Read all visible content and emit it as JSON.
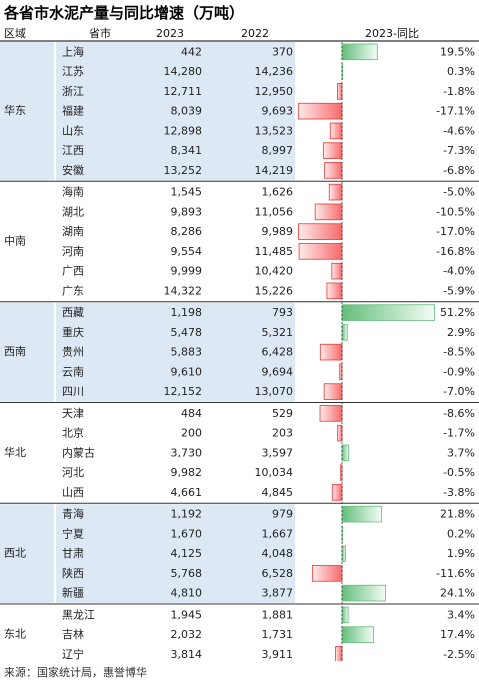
{
  "title": "各省市水泥产量与同比增速（万吨）",
  "source": "来源：国家统计局，惠誉博华",
  "chart_data": {
    "type": "table",
    "columns": [
      "区域",
      "省市",
      "2023",
      "2022",
      "2023-同比"
    ],
    "regions": [
      {
        "name": "华东",
        "shaded": true,
        "rows": [
          {
            "province": "上海",
            "v2023": "442",
            "v2022": "370",
            "yoy": 19.5,
            "yoy_label": "19.5%"
          },
          {
            "province": "江苏",
            "v2023": "14,280",
            "v2022": "14,236",
            "yoy": 0.3,
            "yoy_label": "0.3%"
          },
          {
            "province": "浙江",
            "v2023": "12,711",
            "v2022": "12,950",
            "yoy": -1.8,
            "yoy_label": "-1.8%"
          },
          {
            "province": "福建",
            "v2023": "8,039",
            "v2022": "9,693",
            "yoy": -17.1,
            "yoy_label": "-17.1%"
          },
          {
            "province": "山东",
            "v2023": "12,898",
            "v2022": "13,523",
            "yoy": -4.6,
            "yoy_label": "-4.6%"
          },
          {
            "province": "江西",
            "v2023": "8,341",
            "v2022": "8,997",
            "yoy": -7.3,
            "yoy_label": "-7.3%"
          },
          {
            "province": "安徽",
            "v2023": "13,252",
            "v2022": "14,219",
            "yoy": -6.8,
            "yoy_label": "-6.8%"
          }
        ]
      },
      {
        "name": "中南",
        "shaded": false,
        "rows": [
          {
            "province": "海南",
            "v2023": "1,545",
            "v2022": "1,626",
            "yoy": -5.0,
            "yoy_label": "-5.0%"
          },
          {
            "province": "湖北",
            "v2023": "9,893",
            "v2022": "11,056",
            "yoy": -10.5,
            "yoy_label": "-10.5%"
          },
          {
            "province": "湖南",
            "v2023": "8,286",
            "v2022": "9,989",
            "yoy": -17.0,
            "yoy_label": "-17.0%"
          },
          {
            "province": "河南",
            "v2023": "9,554",
            "v2022": "11,485",
            "yoy": -16.8,
            "yoy_label": "-16.8%"
          },
          {
            "province": "广西",
            "v2023": "9,999",
            "v2022": "10,420",
            "yoy": -4.0,
            "yoy_label": "-4.0%"
          },
          {
            "province": "广东",
            "v2023": "14,322",
            "v2022": "15,226",
            "yoy": -5.9,
            "yoy_label": "-5.9%"
          }
        ]
      },
      {
        "name": "西南",
        "shaded": true,
        "rows": [
          {
            "province": "西藏",
            "v2023": "1,198",
            "v2022": "793",
            "yoy": 51.2,
            "yoy_label": "51.2%"
          },
          {
            "province": "重庆",
            "v2023": "5,478",
            "v2022": "5,321",
            "yoy": 2.9,
            "yoy_label": "2.9%"
          },
          {
            "province": "贵州",
            "v2023": "5,883",
            "v2022": "6,428",
            "yoy": -8.5,
            "yoy_label": "-8.5%"
          },
          {
            "province": "云南",
            "v2023": "9,610",
            "v2022": "9,694",
            "yoy": -0.9,
            "yoy_label": "-0.9%"
          },
          {
            "province": "四川",
            "v2023": "12,152",
            "v2022": "13,070",
            "yoy": -7.0,
            "yoy_label": "-7.0%"
          }
        ]
      },
      {
        "name": "华北",
        "shaded": false,
        "rows": [
          {
            "province": "天津",
            "v2023": "484",
            "v2022": "529",
            "yoy": -8.6,
            "yoy_label": "-8.6%"
          },
          {
            "province": "北京",
            "v2023": "200",
            "v2022": "203",
            "yoy": -1.7,
            "yoy_label": "-1.7%"
          },
          {
            "province": "内蒙古",
            "v2023": "3,730",
            "v2022": "3,597",
            "yoy": 3.7,
            "yoy_label": "3.7%"
          },
          {
            "province": "河北",
            "v2023": "9,982",
            "v2022": "10,034",
            "yoy": -0.5,
            "yoy_label": "-0.5%"
          },
          {
            "province": "山西",
            "v2023": "4,661",
            "v2022": "4,845",
            "yoy": -3.8,
            "yoy_label": "-3.8%"
          }
        ]
      },
      {
        "name": "西北",
        "shaded": true,
        "rows": [
          {
            "province": "青海",
            "v2023": "1,192",
            "v2022": "979",
            "yoy": 21.8,
            "yoy_label": "21.8%"
          },
          {
            "province": "宁夏",
            "v2023": "1,670",
            "v2022": "1,667",
            "yoy": 0.2,
            "yoy_label": "0.2%"
          },
          {
            "province": "甘肃",
            "v2023": "4,125",
            "v2022": "4,048",
            "yoy": 1.9,
            "yoy_label": "1.9%"
          },
          {
            "province": "陕西",
            "v2023": "5,768",
            "v2022": "6,528",
            "yoy": -11.6,
            "yoy_label": "-11.6%"
          },
          {
            "province": "新疆",
            "v2023": "4,810",
            "v2022": "3,877",
            "yoy": 24.1,
            "yoy_label": "24.1%"
          }
        ]
      },
      {
        "name": "东北",
        "shaded": false,
        "rows": [
          {
            "province": "黑龙江",
            "v2023": "1,945",
            "v2022": "1,881",
            "yoy": 3.4,
            "yoy_label": "3.4%"
          },
          {
            "province": "吉林",
            "v2023": "2,032",
            "v2022": "1,731",
            "yoy": 17.4,
            "yoy_label": "17.4%"
          },
          {
            "province": "辽宁",
            "v2023": "3,814",
            "v2022": "3,911",
            "yoy": -2.5,
            "yoy_label": "-2.5%"
          }
        ]
      }
    ],
    "colors": {
      "shade": "#dce9f5",
      "header_bg": "#ffffff",
      "positive_bar": "#63be7b",
      "negative_bar": "#f8696b",
      "border": "#333333"
    }
  }
}
